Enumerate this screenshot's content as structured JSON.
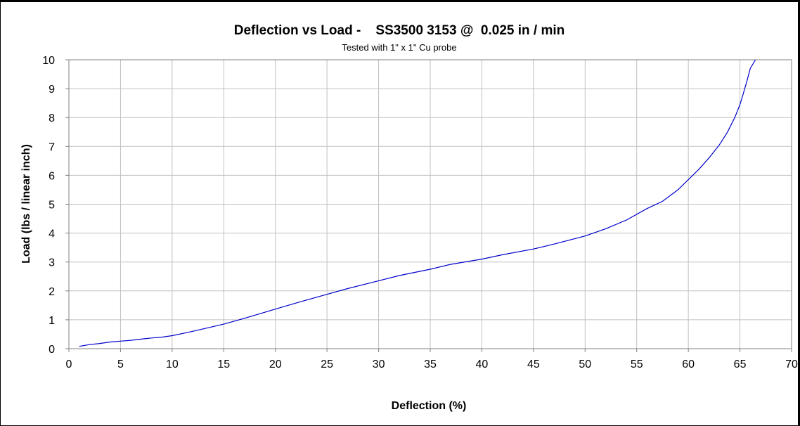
{
  "chart_data": {
    "type": "line",
    "title": "Deflection vs Load -    SS3500 3153 @  0.025 in / min",
    "subtitle": "Tested with 1\" x 1\" Cu probe",
    "xlabel": "Deflection (%)",
    "ylabel": "Load (lbs / linear inch)",
    "xlim": [
      0,
      70
    ],
    "ylim": [
      0,
      10
    ],
    "xticks": [
      0,
      5,
      10,
      15,
      20,
      25,
      30,
      35,
      40,
      45,
      50,
      55,
      60,
      65,
      70
    ],
    "yticks": [
      0,
      1,
      2,
      3,
      4,
      5,
      6,
      7,
      8,
      9,
      10
    ],
    "grid": true,
    "legend": "none",
    "line_color": "#0000cc",
    "series": [
      {
        "x": [
          1,
          2,
          3,
          4,
          5,
          6,
          7,
          8,
          9,
          10,
          12,
          15,
          17,
          20,
          22,
          25,
          27,
          30,
          32,
          35,
          37,
          40,
          42,
          45,
          47,
          50,
          52,
          54,
          56,
          57.5,
          59,
          60,
          61,
          62,
          63,
          63.8,
          64.5,
          65,
          65.3,
          65.7,
          66,
          66.5
        ],
        "y": [
          0.08,
          0.14,
          0.18,
          0.23,
          0.26,
          0.29,
          0.33,
          0.37,
          0.4,
          0.45,
          0.6,
          0.85,
          1.05,
          1.37,
          1.58,
          1.88,
          2.08,
          2.35,
          2.53,
          2.75,
          2.92,
          3.1,
          3.25,
          3.45,
          3.62,
          3.9,
          4.15,
          4.45,
          4.85,
          5.1,
          5.5,
          5.85,
          6.2,
          6.6,
          7.05,
          7.5,
          8.0,
          8.45,
          8.8,
          9.3,
          9.7,
          10.0
        ]
      }
    ]
  }
}
